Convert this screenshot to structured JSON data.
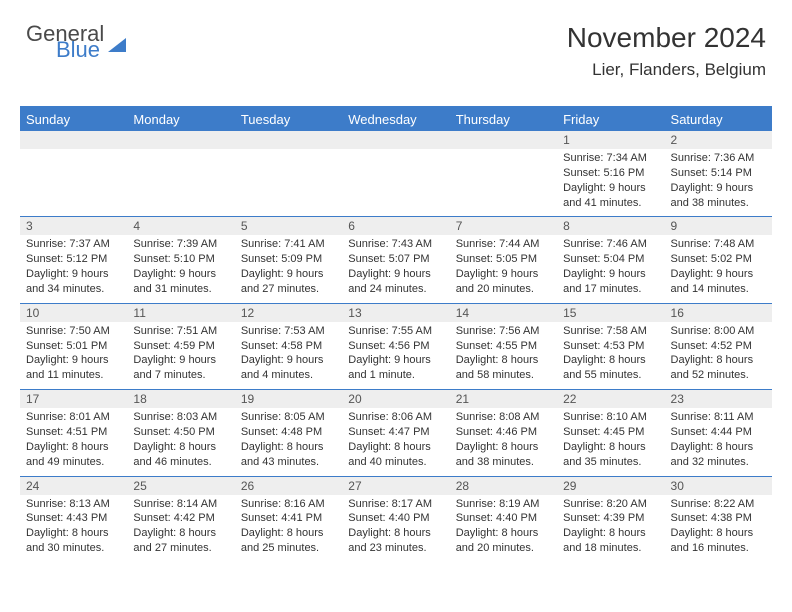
{
  "logo": {
    "word1": "General",
    "word2": "Blue"
  },
  "title": "November 2024",
  "location": "Lier, Flanders, Belgium",
  "colors": {
    "accent": "#3d7cc9",
    "header_text": "#ffffff",
    "daynum_bg": "#eeeeee",
    "body_text": "#333333",
    "logo_gray": "#4a4a4a"
  },
  "day_headers": [
    "Sunday",
    "Monday",
    "Tuesday",
    "Wednesday",
    "Thursday",
    "Friday",
    "Saturday"
  ],
  "weeks": [
    [
      {
        "n": "",
        "sunrise": "",
        "sunset": "",
        "daylight": ""
      },
      {
        "n": "",
        "sunrise": "",
        "sunset": "",
        "daylight": ""
      },
      {
        "n": "",
        "sunrise": "",
        "sunset": "",
        "daylight": ""
      },
      {
        "n": "",
        "sunrise": "",
        "sunset": "",
        "daylight": ""
      },
      {
        "n": "",
        "sunrise": "",
        "sunset": "",
        "daylight": ""
      },
      {
        "n": "1",
        "sunrise": "Sunrise: 7:34 AM",
        "sunset": "Sunset: 5:16 PM",
        "daylight": "Daylight: 9 hours and 41 minutes."
      },
      {
        "n": "2",
        "sunrise": "Sunrise: 7:36 AM",
        "sunset": "Sunset: 5:14 PM",
        "daylight": "Daylight: 9 hours and 38 minutes."
      }
    ],
    [
      {
        "n": "3",
        "sunrise": "Sunrise: 7:37 AM",
        "sunset": "Sunset: 5:12 PM",
        "daylight": "Daylight: 9 hours and 34 minutes."
      },
      {
        "n": "4",
        "sunrise": "Sunrise: 7:39 AM",
        "sunset": "Sunset: 5:10 PM",
        "daylight": "Daylight: 9 hours and 31 minutes."
      },
      {
        "n": "5",
        "sunrise": "Sunrise: 7:41 AM",
        "sunset": "Sunset: 5:09 PM",
        "daylight": "Daylight: 9 hours and 27 minutes."
      },
      {
        "n": "6",
        "sunrise": "Sunrise: 7:43 AM",
        "sunset": "Sunset: 5:07 PM",
        "daylight": "Daylight: 9 hours and 24 minutes."
      },
      {
        "n": "7",
        "sunrise": "Sunrise: 7:44 AM",
        "sunset": "Sunset: 5:05 PM",
        "daylight": "Daylight: 9 hours and 20 minutes."
      },
      {
        "n": "8",
        "sunrise": "Sunrise: 7:46 AM",
        "sunset": "Sunset: 5:04 PM",
        "daylight": "Daylight: 9 hours and 17 minutes."
      },
      {
        "n": "9",
        "sunrise": "Sunrise: 7:48 AM",
        "sunset": "Sunset: 5:02 PM",
        "daylight": "Daylight: 9 hours and 14 minutes."
      }
    ],
    [
      {
        "n": "10",
        "sunrise": "Sunrise: 7:50 AM",
        "sunset": "Sunset: 5:01 PM",
        "daylight": "Daylight: 9 hours and 11 minutes."
      },
      {
        "n": "11",
        "sunrise": "Sunrise: 7:51 AM",
        "sunset": "Sunset: 4:59 PM",
        "daylight": "Daylight: 9 hours and 7 minutes."
      },
      {
        "n": "12",
        "sunrise": "Sunrise: 7:53 AM",
        "sunset": "Sunset: 4:58 PM",
        "daylight": "Daylight: 9 hours and 4 minutes."
      },
      {
        "n": "13",
        "sunrise": "Sunrise: 7:55 AM",
        "sunset": "Sunset: 4:56 PM",
        "daylight": "Daylight: 9 hours and 1 minute."
      },
      {
        "n": "14",
        "sunrise": "Sunrise: 7:56 AM",
        "sunset": "Sunset: 4:55 PM",
        "daylight": "Daylight: 8 hours and 58 minutes."
      },
      {
        "n": "15",
        "sunrise": "Sunrise: 7:58 AM",
        "sunset": "Sunset: 4:53 PM",
        "daylight": "Daylight: 8 hours and 55 minutes."
      },
      {
        "n": "16",
        "sunrise": "Sunrise: 8:00 AM",
        "sunset": "Sunset: 4:52 PM",
        "daylight": "Daylight: 8 hours and 52 minutes."
      }
    ],
    [
      {
        "n": "17",
        "sunrise": "Sunrise: 8:01 AM",
        "sunset": "Sunset: 4:51 PM",
        "daylight": "Daylight: 8 hours and 49 minutes."
      },
      {
        "n": "18",
        "sunrise": "Sunrise: 8:03 AM",
        "sunset": "Sunset: 4:50 PM",
        "daylight": "Daylight: 8 hours and 46 minutes."
      },
      {
        "n": "19",
        "sunrise": "Sunrise: 8:05 AM",
        "sunset": "Sunset: 4:48 PM",
        "daylight": "Daylight: 8 hours and 43 minutes."
      },
      {
        "n": "20",
        "sunrise": "Sunrise: 8:06 AM",
        "sunset": "Sunset: 4:47 PM",
        "daylight": "Daylight: 8 hours and 40 minutes."
      },
      {
        "n": "21",
        "sunrise": "Sunrise: 8:08 AM",
        "sunset": "Sunset: 4:46 PM",
        "daylight": "Daylight: 8 hours and 38 minutes."
      },
      {
        "n": "22",
        "sunrise": "Sunrise: 8:10 AM",
        "sunset": "Sunset: 4:45 PM",
        "daylight": "Daylight: 8 hours and 35 minutes."
      },
      {
        "n": "23",
        "sunrise": "Sunrise: 8:11 AM",
        "sunset": "Sunset: 4:44 PM",
        "daylight": "Daylight: 8 hours and 32 minutes."
      }
    ],
    [
      {
        "n": "24",
        "sunrise": "Sunrise: 8:13 AM",
        "sunset": "Sunset: 4:43 PM",
        "daylight": "Daylight: 8 hours and 30 minutes."
      },
      {
        "n": "25",
        "sunrise": "Sunrise: 8:14 AM",
        "sunset": "Sunset: 4:42 PM",
        "daylight": "Daylight: 8 hours and 27 minutes."
      },
      {
        "n": "26",
        "sunrise": "Sunrise: 8:16 AM",
        "sunset": "Sunset: 4:41 PM",
        "daylight": "Daylight: 8 hours and 25 minutes."
      },
      {
        "n": "27",
        "sunrise": "Sunrise: 8:17 AM",
        "sunset": "Sunset: 4:40 PM",
        "daylight": "Daylight: 8 hours and 23 minutes."
      },
      {
        "n": "28",
        "sunrise": "Sunrise: 8:19 AM",
        "sunset": "Sunset: 4:40 PM",
        "daylight": "Daylight: 8 hours and 20 minutes."
      },
      {
        "n": "29",
        "sunrise": "Sunrise: 8:20 AM",
        "sunset": "Sunset: 4:39 PM",
        "daylight": "Daylight: 8 hours and 18 minutes."
      },
      {
        "n": "30",
        "sunrise": "Sunrise: 8:22 AM",
        "sunset": "Sunset: 4:38 PM",
        "daylight": "Daylight: 8 hours and 16 minutes."
      }
    ]
  ]
}
